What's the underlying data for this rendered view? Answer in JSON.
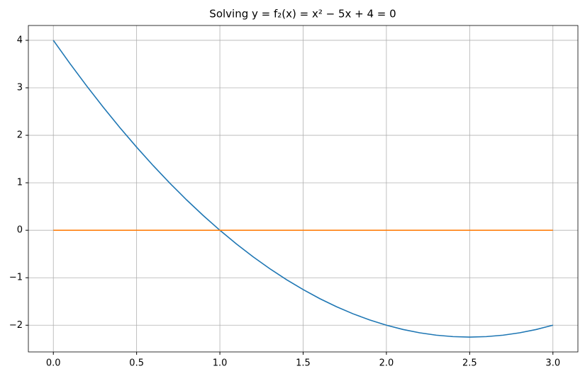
{
  "chart_data": {
    "type": "line",
    "title": "Solving y = f₂(x) = x² − 5x + 4 = 0",
    "x": [
      0,
      0.1,
      0.2,
      0.3,
      0.4,
      0.5,
      0.6,
      0.7,
      0.8,
      0.9,
      1.0,
      1.1,
      1.2,
      1.3,
      1.4,
      1.5,
      1.6,
      1.7,
      1.8,
      1.9,
      2.0,
      2.1,
      2.2,
      2.3,
      2.4,
      2.5,
      2.6,
      2.7,
      2.8,
      2.9,
      3.0
    ],
    "series": [
      {
        "color": "#1f77b4",
        "values": [
          4,
          3.51,
          3.04,
          2.59,
          2.16,
          1.75,
          1.36,
          0.99,
          0.64,
          0.31,
          0,
          -0.29,
          -0.56,
          -0.81,
          -1.04,
          -1.25,
          -1.44,
          -1.61,
          -1.76,
          -1.89,
          -2,
          -2.09,
          -2.16,
          -2.21,
          -2.24,
          -2.25,
          -2.24,
          -2.21,
          -2.16,
          -2.09,
          -2
        ]
      },
      {
        "color": "#ff7f0e",
        "values": [
          0,
          0,
          0,
          0,
          0,
          0,
          0,
          0,
          0,
          0,
          0,
          0,
          0,
          0,
          0,
          0,
          0,
          0,
          0,
          0,
          0,
          0,
          0,
          0,
          0,
          0,
          0,
          0,
          0,
          0,
          0
        ]
      }
    ],
    "xlim": [
      -0.15,
      3.15
    ],
    "ylim": [
      -2.5625,
      4.3125
    ],
    "xticks": [
      {
        "value": 0,
        "label": "0.0"
      },
      0.5,
      {
        "value": 1,
        "label": "1.0"
      },
      1.5,
      {
        "value": 2,
        "label": "2.0"
      },
      2.5,
      {
        "value": 3,
        "label": "3.0"
      }
    ],
    "yticks": [
      {
        "value": -2,
        "label": "−2"
      },
      {
        "value": -1,
        "label": "−1"
      },
      0,
      1,
      2,
      3,
      4
    ],
    "grid": true
  }
}
